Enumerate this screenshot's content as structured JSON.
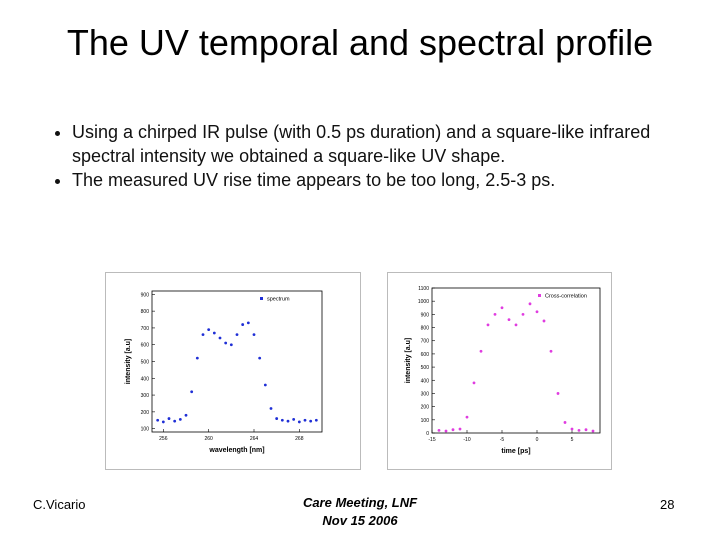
{
  "slide": {
    "title": "The UV temporal and spectral profile",
    "bullets": [
      "Using a chirped IR pulse (with 0.5 ps duration) and a square-like infrared spectral intensity we obtained a square-like UV shape.",
      "The measured UV rise time appears to be too long, 2.5-3 ps."
    ],
    "footer_left": "C.Vicario",
    "footer_center": [
      "Care Meeting, LNF",
      "Nov 15 2006"
    ],
    "page_number": "28"
  },
  "chart_data": [
    {
      "type": "scatter",
      "x_label": "wavelength [nm]",
      "y_label": "intensity [a.u]",
      "x": [
        255.5,
        256,
        256.5,
        257,
        257.5,
        258,
        258.5,
        259,
        259.5,
        260,
        260.5,
        261,
        261.5,
        262,
        262.5,
        263,
        263.5,
        264,
        264.5,
        265,
        265.5,
        266,
        266.5,
        267,
        267.5,
        268,
        268.5,
        269,
        269.5
      ],
      "series": [
        {
          "name": "spectrum",
          "color": "#1f2fd6",
          "values": [
            150,
            140,
            160,
            145,
            155,
            180,
            320,
            520,
            660,
            690,
            670,
            640,
            610,
            600,
            660,
            720,
            730,
            660,
            520,
            360,
            220,
            160,
            150,
            145,
            155,
            140,
            150,
            145,
            150
          ]
        }
      ],
      "xlim": [
        255,
        270
      ],
      "ylim": [
        80,
        920
      ],
      "xticks": [
        256,
        260,
        264,
        268
      ],
      "yticks": [
        100,
        200,
        300,
        400,
        500,
        600,
        700,
        800,
        900
      ]
    },
    {
      "type": "scatter",
      "x_label": "time [ps]",
      "y_label": "intensity [a.u]",
      "x": [
        -14,
        -13,
        -12,
        -11,
        -10,
        -9,
        -8,
        -7,
        -6,
        -5,
        -4,
        -3,
        -2,
        -1,
        0,
        1,
        2,
        3,
        4,
        5,
        6,
        7,
        8
      ],
      "series": [
        {
          "name": "Cross-correlation",
          "color": "#e03ce0",
          "values": [
            20,
            15,
            25,
            30,
            120,
            380,
            620,
            820,
            900,
            950,
            860,
            820,
            900,
            980,
            920,
            850,
            620,
            300,
            80,
            30,
            20,
            25,
            15
          ]
        }
      ],
      "xlim": [
        -15,
        9
      ],
      "ylim": [
        0,
        1100
      ],
      "xticks": [
        -15,
        -10,
        -5,
        0,
        5
      ],
      "yticks": [
        0,
        100,
        200,
        300,
        400,
        500,
        600,
        700,
        800,
        900,
        1000,
        1100
      ]
    }
  ]
}
